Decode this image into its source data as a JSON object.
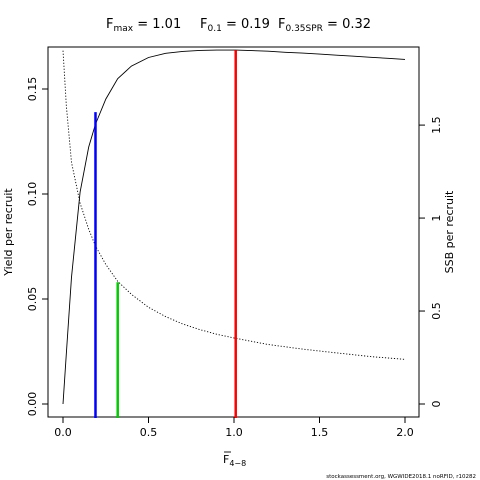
{
  "chart_data": {
    "type": "line",
    "title": {
      "fmax": {
        "sym": "F",
        "sub": "max",
        "value": "1.01"
      },
      "f01": {
        "sym": "F",
        "sub": "0.1",
        "value": "0.19"
      },
      "f035": {
        "sym": "F",
        "sub": "0.35SPR",
        "value": "0.32"
      }
    },
    "xlabel": {
      "sym": "F",
      "sub": "4−8"
    },
    "ylabel_left": "Yield per recruit",
    "ylabel_right": "SSB per recruit",
    "footnote": "stockassessment.org, WGWIDE2018.1 noRFID, r10282",
    "x_ticks": [
      "0.0",
      "0.5",
      "1.0",
      "1.5",
      "2.0"
    ],
    "y_left_ticks": [
      "0.00",
      "0.05",
      "0.10",
      "0.15"
    ],
    "y_right_ticks": [
      "0",
      "0.5",
      "1",
      "1.5"
    ],
    "xlim": [
      0,
      2.0
    ],
    "ylim_left": [
      0,
      0.17
    ],
    "ylim_right": [
      0,
      1.92
    ],
    "series": [
      {
        "axis": "left",
        "style": "solid",
        "color": "#000000",
        "x": [
          0,
          0.02,
          0.05,
          0.1,
          0.15,
          0.19,
          0.25,
          0.32,
          0.4,
          0.5,
          0.6,
          0.7,
          0.8,
          0.9,
          1.01,
          1.1,
          1.2,
          1.3,
          1.4,
          1.5,
          1.6,
          1.7,
          1.8,
          1.9,
          2.0
        ],
        "y": [
          0,
          0.0245,
          0.0604,
          0.1009,
          0.1224,
          0.1333,
          0.1452,
          0.1549,
          0.1609,
          0.165,
          0.167,
          0.1679,
          0.1684,
          0.1685,
          0.1685,
          0.1683,
          0.168,
          0.1675,
          0.1671,
          0.1666,
          0.1661,
          0.1656,
          0.1651,
          0.1646,
          0.1641
        ]
      },
      {
        "axis": "right",
        "style": "dotted",
        "color": "#000000",
        "x": [
          0,
          0.02,
          0.05,
          0.1,
          0.15,
          0.19,
          0.25,
          0.32,
          0.4,
          0.5,
          0.6,
          0.7,
          0.8,
          0.9,
          1.0,
          1.2,
          1.4,
          1.6,
          1.8,
          2.0
        ],
        "y": [
          1.9,
          1.6,
          1.3,
          1.08,
          0.94,
          0.85,
          0.75,
          0.66,
          0.59,
          0.52,
          0.47,
          0.43,
          0.4,
          0.375,
          0.355,
          0.32,
          0.295,
          0.275,
          0.255,
          0.24
        ]
      }
    ],
    "reference_lines": [
      {
        "name": "F0.1",
        "x": 0.19,
        "y_top": 0.139,
        "color": "#0000ff"
      },
      {
        "name": "F0.35SPR",
        "x": 0.32,
        "y_top": 0.058,
        "color": "#00cc00"
      },
      {
        "name": "Fmax",
        "x": 1.01,
        "y_top": 0.1685,
        "color": "#ff0000"
      }
    ],
    "grid": false,
    "legend": "none"
  }
}
